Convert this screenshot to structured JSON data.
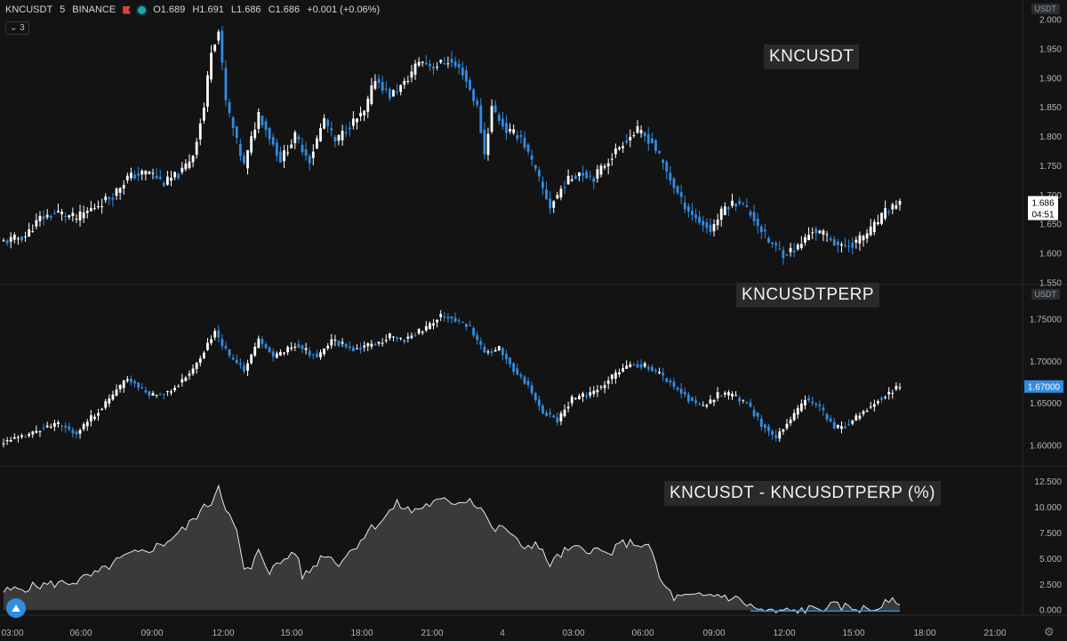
{
  "header": {
    "symbol": "KNCUSDT",
    "interval": "5",
    "exchange": "BINANCE",
    "open": "O1.689",
    "high": "H1.691",
    "low": "L1.686",
    "close": "C1.686",
    "change": "+0.001 (+0.06%)",
    "indicator_count": "3"
  },
  "colors": {
    "background": "#131313",
    "up": "#ffffff",
    "down": "#2f8de4",
    "spread_line": "#e6e6e6",
    "spread_fill": "#3a3a3a",
    "spread_negative": "#2f8de4"
  },
  "chart_data": [
    {
      "type": "candlestick",
      "title": "KNCUSDT",
      "unit": "USDT",
      "x_ticks": [
        "03:00",
        "06:00",
        "09:00",
        "12:00",
        "15:00",
        "18:00",
        "21:00",
        "4",
        "03:00",
        "06:00",
        "09:00",
        "12:00",
        "15:00",
        "18:00",
        "21:00"
      ],
      "y_ticks": [
        "2.000",
        "1.950",
        "1.900",
        "1.850",
        "1.800",
        "1.750",
        "1.700",
        "1.650",
        "1.600",
        "1.550"
      ],
      "ylim": [
        1.55,
        2.0
      ],
      "last_price": "1.686",
      "countdown": "04:51",
      "anchors": [
        [
          0,
          1.62
        ],
        [
          6,
          1.63
        ],
        [
          10,
          1.66
        ],
        [
          15,
          1.67
        ],
        [
          20,
          1.66
        ],
        [
          30,
          1.7
        ],
        [
          34,
          1.73
        ],
        [
          40,
          1.74
        ],
        [
          44,
          1.72
        ],
        [
          49,
          1.74
        ],
        [
          52,
          1.77
        ],
        [
          55,
          1.85
        ],
        [
          57,
          1.95
        ],
        [
          59,
          1.98
        ],
        [
          61,
          1.86
        ],
        [
          64,
          1.79
        ],
        [
          66,
          1.75
        ],
        [
          70,
          1.84
        ],
        [
          73,
          1.8
        ],
        [
          76,
          1.76
        ],
        [
          80,
          1.8
        ],
        [
          84,
          1.76
        ],
        [
          88,
          1.83
        ],
        [
          91,
          1.79
        ],
        [
          95,
          1.82
        ],
        [
          99,
          1.84
        ],
        [
          102,
          1.9
        ],
        [
          106,
          1.87
        ],
        [
          110,
          1.89
        ],
        [
          114,
          1.93
        ],
        [
          118,
          1.92
        ],
        [
          122,
          1.93
        ],
        [
          126,
          1.91
        ],
        [
          130,
          1.85
        ],
        [
          132,
          1.77
        ],
        [
          134,
          1.85
        ],
        [
          138,
          1.81
        ],
        [
          142,
          1.8
        ],
        [
          146,
          1.74
        ],
        [
          150,
          1.68
        ],
        [
          154,
          1.72
        ],
        [
          158,
          1.74
        ],
        [
          162,
          1.73
        ],
        [
          166,
          1.76
        ],
        [
          170,
          1.79
        ],
        [
          174,
          1.81
        ],
        [
          178,
          1.79
        ],
        [
          182,
          1.74
        ],
        [
          186,
          1.69
        ],
        [
          190,
          1.66
        ],
        [
          194,
          1.64
        ],
        [
          198,
          1.68
        ],
        [
          202,
          1.69
        ],
        [
          206,
          1.66
        ],
        [
          210,
          1.62
        ],
        [
          214,
          1.6
        ],
        [
          218,
          1.61
        ],
        [
          222,
          1.64
        ],
        [
          226,
          1.63
        ],
        [
          230,
          1.61
        ],
        [
          234,
          1.62
        ],
        [
          238,
          1.64
        ],
        [
          242,
          1.67
        ],
        [
          246,
          1.69
        ]
      ]
    },
    {
      "type": "candlestick",
      "title": "KNCUSDTPERP",
      "unit": "USDT",
      "y_ticks": [
        "1.75000",
        "1.70000",
        "1.65000",
        "1.60000"
      ],
      "ylim": [
        1.58,
        1.77
      ],
      "last_price": "1.67000",
      "anchors": [
        [
          0,
          1.605
        ],
        [
          6,
          1.61
        ],
        [
          10,
          1.62
        ],
        [
          15,
          1.625
        ],
        [
          20,
          1.615
        ],
        [
          28,
          1.65
        ],
        [
          34,
          1.68
        ],
        [
          40,
          1.66
        ],
        [
          46,
          1.665
        ],
        [
          52,
          1.69
        ],
        [
          58,
          1.735
        ],
        [
          62,
          1.705
        ],
        [
          66,
          1.69
        ],
        [
          70,
          1.725
        ],
        [
          74,
          1.705
        ],
        [
          80,
          1.72
        ],
        [
          86,
          1.705
        ],
        [
          90,
          1.725
        ],
        [
          96,
          1.715
        ],
        [
          102,
          1.72
        ],
        [
          106,
          1.73
        ],
        [
          110,
          1.725
        ],
        [
          116,
          1.74
        ],
        [
          120,
          1.755
        ],
        [
          124,
          1.75
        ],
        [
          128,
          1.74
        ],
        [
          132,
          1.71
        ],
        [
          136,
          1.715
        ],
        [
          140,
          1.69
        ],
        [
          144,
          1.67
        ],
        [
          148,
          1.64
        ],
        [
          152,
          1.63
        ],
        [
          156,
          1.655
        ],
        [
          160,
          1.66
        ],
        [
          164,
          1.67
        ],
        [
          168,
          1.685
        ],
        [
          172,
          1.695
        ],
        [
          176,
          1.695
        ],
        [
          180,
          1.685
        ],
        [
          184,
          1.67
        ],
        [
          188,
          1.655
        ],
        [
          192,
          1.645
        ],
        [
          196,
          1.66
        ],
        [
          200,
          1.66
        ],
        [
          204,
          1.65
        ],
        [
          208,
          1.625
        ],
        [
          212,
          1.61
        ],
        [
          216,
          1.63
        ],
        [
          220,
          1.655
        ],
        [
          224,
          1.645
        ],
        [
          228,
          1.62
        ],
        [
          232,
          1.625
        ],
        [
          236,
          1.64
        ],
        [
          240,
          1.655
        ],
        [
          244,
          1.665
        ],
        [
          246,
          1.67
        ]
      ]
    },
    {
      "type": "area",
      "title": "KNCUSDT - KNCUSDTPERP (%)",
      "y_ticks": [
        "12.500",
        "10.000",
        "7.500",
        "5.000",
        "2.500",
        "0.000"
      ],
      "ylim": [
        -0.5,
        13.5
      ],
      "anchors": [
        [
          0,
          1.8
        ],
        [
          10,
          2.4
        ],
        [
          20,
          2.8
        ],
        [
          26,
          3.6
        ],
        [
          30,
          4.5
        ],
        [
          34,
          5.3
        ],
        [
          38,
          5.6
        ],
        [
          44,
          6.5
        ],
        [
          50,
          8.0
        ],
        [
          54,
          9.6
        ],
        [
          57,
          10.5
        ],
        [
          59,
          12.2
        ],
        [
          61,
          10.0
        ],
        [
          64,
          7.5
        ],
        [
          66,
          4.0
        ],
        [
          68,
          3.8
        ],
        [
          70,
          6.0
        ],
        [
          73,
          3.8
        ],
        [
          76,
          4.6
        ],
        [
          80,
          5.8
        ],
        [
          82,
          3.3
        ],
        [
          84,
          3.8
        ],
        [
          88,
          5.5
        ],
        [
          92,
          4.6
        ],
        [
          96,
          6.0
        ],
        [
          100,
          7.7
        ],
        [
          104,
          8.8
        ],
        [
          108,
          10.3
        ],
        [
          112,
          9.6
        ],
        [
          116,
          10.2
        ],
        [
          120,
          10.6
        ],
        [
          124,
          10.5
        ],
        [
          128,
          10.8
        ],
        [
          132,
          9.6
        ],
        [
          134,
          7.8
        ],
        [
          138,
          8.0
        ],
        [
          142,
          6.1
        ],
        [
          146,
          6.5
        ],
        [
          150,
          4.5
        ],
        [
          154,
          5.7
        ],
        [
          158,
          6.0
        ],
        [
          162,
          5.9
        ],
        [
          166,
          5.4
        ],
        [
          170,
          6.5
        ],
        [
          174,
          6.5
        ],
        [
          178,
          5.8
        ],
        [
          180,
          3.0
        ],
        [
          184,
          1.2
        ],
        [
          190,
          1.3
        ],
        [
          196,
          1.5
        ],
        [
          202,
          1.0
        ],
        [
          206,
          0.2
        ],
        [
          210,
          -0.2
        ],
        [
          216,
          -0.1
        ],
        [
          222,
          0.1
        ],
        [
          228,
          0.4
        ],
        [
          234,
          0.2
        ],
        [
          238,
          0.0
        ],
        [
          242,
          0.6
        ],
        [
          246,
          0.9
        ]
      ]
    }
  ]
}
